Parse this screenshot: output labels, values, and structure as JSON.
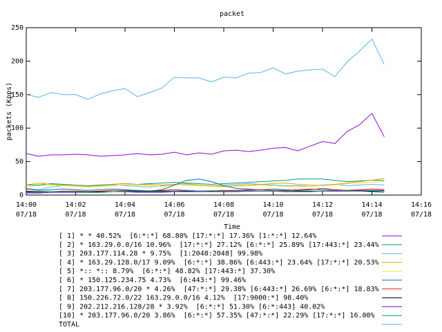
{
  "chart_data": {
    "type": "line",
    "title": "packet",
    "x_label": "Time",
    "y_label": "packets (Kpps)",
    "x": [
      "14:00:00",
      "14:00:30",
      "14:01:00",
      "14:01:30",
      "14:02:00",
      "14:02:30",
      "14:03:00",
      "14:03:30",
      "14:04:00",
      "14:04:30",
      "14:05:00",
      "14:05:30",
      "14:06:00",
      "14:06:30",
      "14:07:00",
      "14:07:30",
      "14:08:00",
      "14:08:30",
      "14:09:00",
      "14:09:30",
      "14:10:00",
      "14:10:30",
      "14:11:00",
      "14:11:30",
      "14:12:00",
      "14:12:30",
      "14:13:00",
      "14:13:30",
      "14:14:00",
      "14:14:30"
    ],
    "xlim": [
      "14:00",
      "14:16"
    ],
    "xticks": [
      "14:00",
      "14:02",
      "14:04",
      "14:06",
      "14:08",
      "14:10",
      "14:12",
      "14:14",
      "14:16"
    ],
    "xtick_date": "07/18",
    "ylim": [
      0,
      250
    ],
    "yticks": [
      0,
      50,
      100,
      150,
      200,
      250
    ],
    "grid": false,
    "series": [
      {
        "name": "[ 1] * * 40.52%  [6:*:*] 68.80% [17:*:*] 17.36% [1:*:*] 12.64%",
        "color": "#9400d3",
        "values": [
          62,
          58,
          60,
          60,
          61,
          60,
          58,
          59,
          60,
          62,
          60,
          61,
          64,
          60,
          63,
          61,
          66,
          67,
          65,
          67,
          70,
          71,
          66,
          73,
          80,
          77,
          95,
          105,
          122,
          87
        ]
      },
      {
        "name": "[ 2] * 163.29.0.0/16 10.96%  [17:*:*] 27.12% [6:*:*] 25.89% [17:443:*] 23.44%",
        "color": "#009e73",
        "values": [
          15,
          15,
          17,
          16,
          15,
          14,
          15,
          16,
          17,
          16,
          17,
          18,
          19,
          18,
          17,
          16,
          17,
          18,
          19,
          20,
          21,
          22,
          24,
          24,
          24,
          22,
          20,
          21,
          22,
          22
        ]
      },
      {
        "name": "[ 3] 203.177.114.28 * 9.75%  [1:2048:2048] 99.98%",
        "color": "#56b4e9",
        "values": [
          10,
          8,
          12,
          14,
          15,
          13,
          14,
          15,
          14,
          13,
          12,
          14,
          16,
          15,
          14,
          13,
          15,
          16,
          17,
          16,
          15,
          14,
          14,
          13,
          15,
          16,
          14,
          15,
          16,
          15
        ]
      },
      {
        "name": "[ 4] * 163.29.128.0/17 9.09%  [6:*:*] 38.86% [6:443:*] 23.64% [17:*:*] 20.53%",
        "color": "#e69f00",
        "values": [
          15,
          18,
          16,
          15,
          14,
          13,
          14,
          16,
          17,
          15,
          16,
          15,
          16,
          17,
          15,
          14,
          13,
          14,
          15,
          16,
          17,
          18,
          16,
          15,
          14,
          16,
          18,
          20,
          22,
          25
        ]
      },
      {
        "name": "[ 5] *:: *:: 8.79%  [6:*:*] 48.82% [17:443:*] 37.30%",
        "color": "#f0e442",
        "values": [
          13,
          14,
          15,
          14,
          13,
          12,
          13,
          14,
          15,
          16,
          14,
          13,
          15,
          16,
          14,
          13,
          12,
          13,
          14,
          15,
          14,
          13,
          12,
          13,
          14,
          15,
          17,
          18,
          19,
          20
        ]
      },
      {
        "name": "[ 6] * 150.125.234.75 4.73%  [6:443:*] 99.46%",
        "color": "#0072b2",
        "values": [
          9,
          7,
          8,
          9,
          8,
          7,
          8,
          9,
          8,
          7,
          6,
          8,
          15,
          22,
          24,
          20,
          14,
          10,
          9,
          8,
          9,
          8,
          7,
          8,
          10,
          8,
          7,
          6,
          5,
          4
        ]
      },
      {
        "name": "[ 7] 203.177.96.0/20 * 4.26%  [47:*:*] 29.38% [6:443:*] 26.69% [6:*:*] 18.83%",
        "color": "#e51e10",
        "values": [
          6,
          5,
          5,
          6,
          6,
          5,
          6,
          7,
          7,
          6,
          6,
          7,
          8,
          7,
          6,
          6,
          7,
          7,
          8,
          8,
          7,
          7,
          8,
          9,
          8,
          8,
          7,
          8,
          9,
          8
        ]
      },
      {
        "name": "[ 8] 150.226.72.0/22 163.29.0.0/16 4.12%  [17:9000:*] 98.40%",
        "color": "#000000",
        "values": [
          5,
          5,
          5,
          5,
          5,
          5,
          5,
          5,
          6,
          6,
          6,
          6,
          6,
          6,
          6,
          6,
          6,
          6,
          6,
          6,
          6,
          6,
          6,
          6,
          6,
          6,
          6,
          6,
          6,
          6
        ]
      },
      {
        "name": "[ 9] 202.212.216.128/28 * 3.92%  [6:*:*] 51.30% [6:*:443] 40.02%",
        "color": "#9400d3",
        "values": [
          3,
          3,
          4,
          4,
          4,
          4,
          4,
          5,
          5,
          4,
          4,
          4,
          5,
          5,
          5,
          5,
          5,
          5,
          6,
          6,
          6,
          5,
          5,
          5,
          6,
          6,
          6,
          7,
          7,
          7
        ]
      },
      {
        "name": "[10] * 203.177.96.0/20 3.86%  [6:*:*] 57.35% [47:*:*] 22.29% [17:*:*] 16.00%",
        "color": "#009e73",
        "values": [
          4,
          4,
          5,
          5,
          5,
          4,
          4,
          5,
          6,
          5,
          5,
          5,
          6,
          7,
          6,
          5,
          6,
          6,
          7,
          6,
          6,
          6,
          5,
          5,
          6,
          7,
          6,
          6,
          7,
          6
        ]
      },
      {
        "name": "TOTAL",
        "color": "#56b4e9",
        "values": [
          150,
          146,
          153,
          150,
          150,
          143,
          151,
          156,
          159,
          147,
          153,
          160,
          176,
          175,
          175,
          169,
          176,
          175,
          182,
          183,
          190,
          181,
          185,
          187,
          188,
          177,
          199,
          215,
          233,
          195
        ]
      }
    ]
  }
}
